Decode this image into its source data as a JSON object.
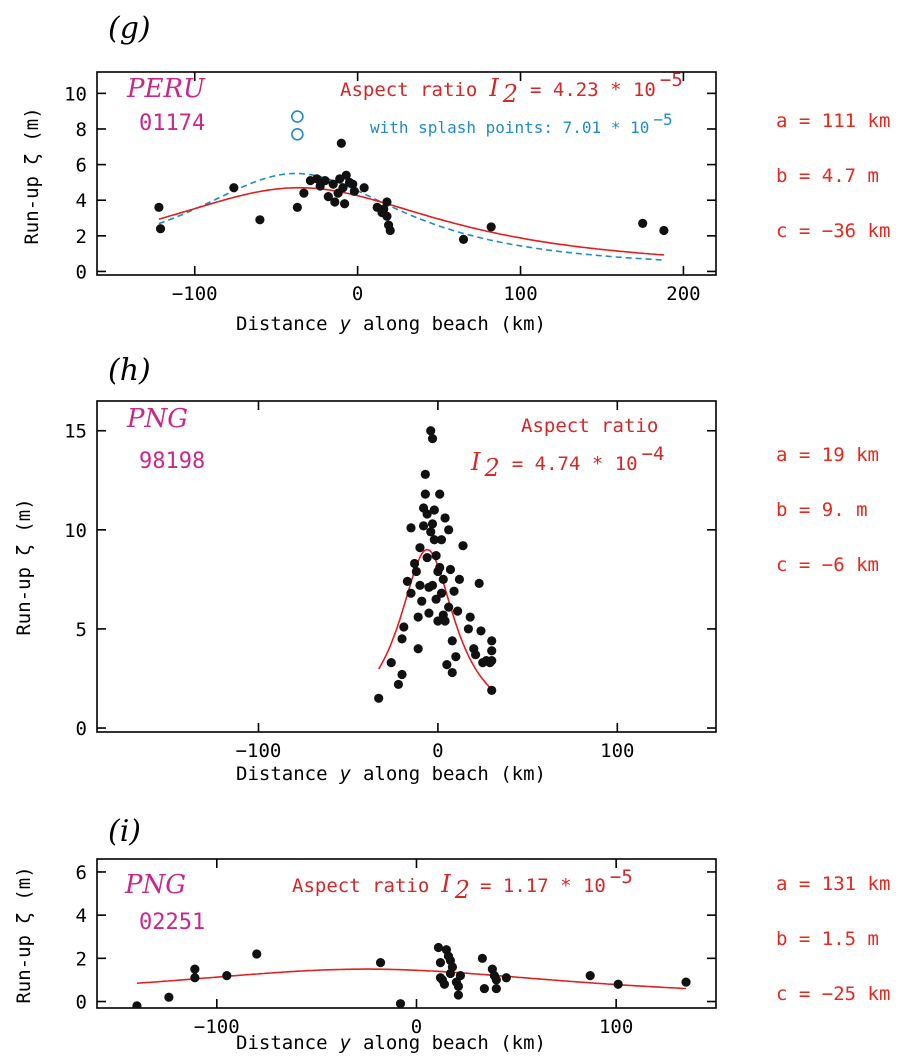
{
  "colors": {
    "points": "#111111",
    "fit_curve": "#e02020",
    "splash_curve": "#1e8cc8",
    "site_label": "#c8288c",
    "param_text": "#e6281e"
  },
  "chart_data": [
    {
      "type": "scatter",
      "panel_tag": "(g)",
      "site_name": "PERU",
      "site_code": "01174",
      "aspect_prefix": "Aspect ratio",
      "aspect_symbol": "I",
      "aspect_subscript": "2",
      "aspect_value": "= 4.23 * 10",
      "aspect_exponent": "−5",
      "splash_note": "with splash points: 7.01 * 10",
      "splash_exponent": "−5",
      "params": [
        "a = 111 km",
        "b = 4.7 m",
        "c = −36 km"
      ],
      "fit": {
        "a": 111,
        "b": 4.7,
        "c": -36,
        "x_range": [
          -122,
          188
        ]
      },
      "splash_fit": {
        "a": 82,
        "b": 5.5,
        "c": -38,
        "x_range": [
          -122,
          188
        ]
      },
      "xlabel": "Distance",
      "xlabel_var": "y",
      "xlabel_rest": "along beach  (km)",
      "ylabel": "Run-up ζ (m)",
      "xlim": [
        -160,
        220
      ],
      "ylim": [
        -0.2,
        11.2
      ],
      "xticks": [
        -100,
        0,
        100,
        200
      ],
      "xtick_labels": [
        "−100",
        "0",
        "100",
        "200"
      ],
      "yticks": [
        0,
        2,
        4,
        6,
        8,
        10
      ],
      "ytick_labels": [
        "0",
        "2",
        "4",
        "6",
        "8",
        "10"
      ],
      "points": [
        [
          -122,
          3.6
        ],
        [
          -121,
          2.4
        ],
        [
          -76,
          4.7
        ],
        [
          -60,
          2.9
        ],
        [
          -37,
          3.6
        ],
        [
          -33,
          4.4
        ],
        [
          -29,
          5.1
        ],
        [
          -25,
          5.2
        ],
        [
          -23,
          4.8
        ],
        [
          -20,
          5.1
        ],
        [
          -18,
          4.2
        ],
        [
          -15,
          4.9
        ],
        [
          -14,
          3.9
        ],
        [
          -12,
          4.4
        ],
        [
          -11,
          5.2
        ],
        [
          -10,
          7.2
        ],
        [
          -9,
          4.7
        ],
        [
          -8,
          3.8
        ],
        [
          -7,
          5.4
        ],
        [
          -5,
          5.0
        ],
        [
          -3,
          4.9
        ],
        [
          -2,
          4.5
        ],
        [
          4,
          4.7
        ],
        [
          12,
          3.6
        ],
        [
          15,
          3.3
        ],
        [
          16,
          3.5
        ],
        [
          18,
          3.9
        ],
        [
          18,
          3.1
        ],
        [
          19,
          2.6
        ],
        [
          20,
          2.3
        ],
        [
          65,
          1.8
        ],
        [
          82,
          2.5
        ],
        [
          175,
          2.7
        ],
        [
          188,
          2.3
        ]
      ],
      "splash_points": [
        [
          -37,
          8.7
        ],
        [
          -37,
          7.7
        ]
      ]
    },
    {
      "type": "scatter",
      "panel_tag": "(h)",
      "site_name": "PNG",
      "site_code": "98198",
      "aspect_prefix": "Aspect ratio",
      "aspect_symbol": "I",
      "aspect_subscript": "2",
      "aspect_value": "= 4.74 * 10",
      "aspect_exponent": "−4",
      "params": [
        "a = 19 km",
        "b = 9. m",
        "c = −6 km"
      ],
      "fit": {
        "a": 19,
        "b": 9.0,
        "c": -6,
        "x_range": [
          -33,
          30
        ]
      },
      "xlabel": "Distance",
      "xlabel_var": "y",
      "xlabel_rest": "along beach  (km)",
      "ylabel": "Run-up ζ (m)",
      "xlim": [
        -190,
        155
      ],
      "ylim": [
        -0.2,
        16.5
      ],
      "xticks": [
        -100,
        0,
        100
      ],
      "xtick_labels": [
        "−100",
        "0",
        "100"
      ],
      "yticks": [
        0,
        5,
        10,
        15
      ],
      "ytick_labels": [
        "0",
        "5",
        "10",
        "15"
      ],
      "points": [
        [
          -33,
          1.5
        ],
        [
          -26,
          3.3
        ],
        [
          -22,
          2.2
        ],
        [
          -20,
          2.7
        ],
        [
          -20,
          4.5
        ],
        [
          -19,
          5.1
        ],
        [
          -17,
          7.4
        ],
        [
          -15,
          6.8
        ],
        [
          -15,
          10.1
        ],
        [
          -13,
          8.3
        ],
        [
          -12,
          7.9
        ],
        [
          -11,
          4.0
        ],
        [
          -11,
          5.6
        ],
        [
          -10,
          7.2
        ],
        [
          -10,
          9.1
        ],
        [
          -9,
          6.4
        ],
        [
          -8,
          10.2
        ],
        [
          -8,
          11.1
        ],
        [
          -7,
          12.8
        ],
        [
          -7,
          11.8
        ],
        [
          -6,
          10.8
        ],
        [
          -6,
          8.6
        ],
        [
          -5,
          7.1
        ],
        [
          -5,
          5.8
        ],
        [
          -4,
          15.0
        ],
        [
          -4,
          9.9
        ],
        [
          -3,
          14.6
        ],
        [
          -3,
          10.3
        ],
        [
          -3,
          7.2
        ],
        [
          -2,
          11.0
        ],
        [
          -2,
          9.5
        ],
        [
          -1,
          8.7
        ],
        [
          -1,
          6.5
        ],
        [
          0,
          7.9
        ],
        [
          0,
          5.4
        ],
        [
          1,
          11.8
        ],
        [
          1,
          8.1
        ],
        [
          2,
          9.5
        ],
        [
          2,
          6.8
        ],
        [
          3,
          7.5
        ],
        [
          3,
          5.7
        ],
        [
          4,
          10.6
        ],
        [
          4,
          5.4
        ],
        [
          5,
          3.2
        ],
        [
          6,
          6.1
        ],
        [
          6,
          10.0
        ],
        [
          7,
          8.0
        ],
        [
          8,
          4.4
        ],
        [
          8,
          2.8
        ],
        [
          9,
          6.9
        ],
        [
          10,
          3.6
        ],
        [
          11,
          5.9
        ],
        [
          12,
          7.5
        ],
        [
          14,
          9.2
        ],
        [
          17,
          5.0
        ],
        [
          18,
          5.6
        ],
        [
          20,
          4.0
        ],
        [
          21,
          3.7
        ],
        [
          23,
          7.3
        ],
        [
          24,
          4.9
        ],
        [
          25,
          3.3
        ],
        [
          27,
          3.4
        ],
        [
          29,
          3.3
        ],
        [
          30,
          4.4
        ],
        [
          30,
          3.9
        ],
        [
          30,
          3.4
        ],
        [
          30,
          1.9
        ]
      ]
    },
    {
      "type": "scatter",
      "panel_tag": "(i)",
      "site_name": "PNG",
      "site_code": "02251",
      "aspect_prefix": "Aspect ratio",
      "aspect_symbol": "I",
      "aspect_subscript": "2",
      "aspect_value": "= 1.17 * 10",
      "aspect_exponent": "−5",
      "params": [
        "a = 131 km",
        "b = 1.5 m",
        "c = −25 km"
      ],
      "fit": {
        "a": 131,
        "b": 1.5,
        "c": -25,
        "x_range": [
          -140,
          135
        ]
      },
      "xlabel": "Distance",
      "xlabel_var": "y",
      "xlabel_rest": "along beach  (km)",
      "ylabel": "Run-up ζ (m)",
      "xlim": [
        -160,
        150
      ],
      "ylim": [
        -0.3,
        6.6
      ],
      "xticks": [
        -100,
        0,
        100
      ],
      "xtick_labels": [
        "−100",
        "0",
        "100"
      ],
      "yticks": [
        0,
        2,
        4,
        6
      ],
      "ytick_labels": [
        "0",
        "2",
        "4",
        "6"
      ],
      "points": [
        [
          -140,
          -0.2
        ],
        [
          -124,
          0.2
        ],
        [
          -111,
          1.5
        ],
        [
          -111,
          1.1
        ],
        [
          -95,
          1.2
        ],
        [
          -80,
          2.2
        ],
        [
          -18,
          1.8
        ],
        [
          -8,
          -0.1
        ],
        [
          11,
          2.5
        ],
        [
          12,
          1.8
        ],
        [
          12,
          1.1
        ],
        [
          13,
          1.0
        ],
        [
          14,
          0.8
        ],
        [
          15,
          2.4
        ],
        [
          16,
          2.1
        ],
        [
          17,
          1.9
        ],
        [
          17,
          1.3
        ],
        [
          18,
          1.6
        ],
        [
          20,
          0.9
        ],
        [
          21,
          0.3
        ],
        [
          21,
          0.7
        ],
        [
          22,
          1.2
        ],
        [
          33,
          2.0
        ],
        [
          34,
          0.6
        ],
        [
          38,
          1.5
        ],
        [
          39,
          1.2
        ],
        [
          40,
          1.0
        ],
        [
          40,
          0.6
        ],
        [
          45,
          1.1
        ],
        [
          87,
          1.2
        ],
        [
          101,
          0.8
        ],
        [
          135,
          0.9
        ]
      ]
    }
  ]
}
